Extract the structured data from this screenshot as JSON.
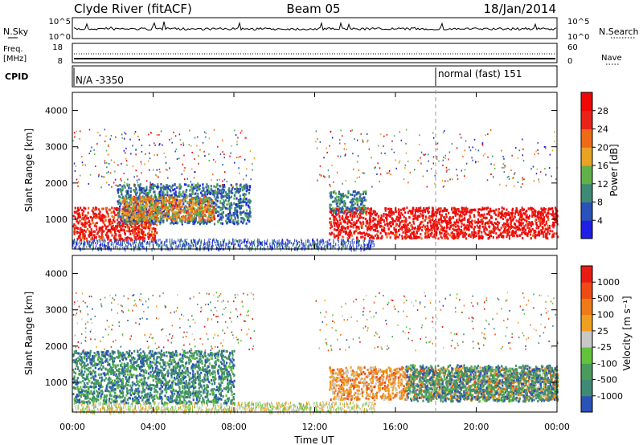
{
  "header": {
    "station": "Clyde River (fitACF)",
    "beam": "Beam 05",
    "date": "18/Jan/2014"
  },
  "top_panels": {
    "nsky_label": "N.Sky",
    "nsky_ticks": [
      "10^5",
      "10^0"
    ],
    "nsearch_label": "N.Search",
    "nsearch_ticks": [
      "10^5",
      "10^0"
    ],
    "freq_label_line1": "Freq.",
    "freq_label_line2": "[MHz]",
    "freq_ticks": [
      "18",
      "8"
    ],
    "nave_label": "Nave",
    "nave_ticks": [
      "60",
      "0"
    ],
    "cpid_label": "CPID",
    "cpid_left": "N/A -3350",
    "cpid_right": "normal (fast) 151"
  },
  "chart_data": [
    {
      "type": "heatmap",
      "name": "power",
      "ylabel": "Slant Range [km]",
      "ylim": [
        180,
        4500
      ],
      "yticks": [
        "1000",
        "2000",
        "3000",
        "4000"
      ],
      "colorbar_label": "Power [dB]",
      "colorbar_ticks": [
        "4",
        "8",
        "12",
        "16",
        "20",
        "24",
        "28"
      ],
      "colorbar_colors": [
        "#1f1fe6",
        "#2a52b8",
        "#3f8a74",
        "#62b04a",
        "#e8a224",
        "#ee6a17",
        "#e8231a",
        "#f00808"
      ],
      "regions": [
        {
          "t0": 0.0,
          "t1": 4.2,
          "r0": 450,
          "r1": 1350,
          "level": 0.85
        },
        {
          "t0": 2.2,
          "t1": 8.8,
          "r0": 900,
          "r1": 2000,
          "level": 0.25
        },
        {
          "t0": 2.4,
          "t1": 7.0,
          "r0": 1000,
          "r1": 1650,
          "level": 0.6
        },
        {
          "t0": 12.7,
          "t1": 24.0,
          "r0": 500,
          "r1": 1350,
          "level": 0.9
        },
        {
          "t0": 12.7,
          "t1": 14.5,
          "r0": 1200,
          "r1": 1800,
          "level": 0.3
        }
      ]
    },
    {
      "type": "heatmap",
      "name": "velocity",
      "xlabel": "Time UT",
      "ylabel": "Slant Range [km]",
      "ylim": [
        180,
        4500
      ],
      "yticks": [
        "1000",
        "2000",
        "3000",
        "4000"
      ],
      "xticks": [
        "00:00",
        "04:00",
        "08:00",
        "12:00",
        "16:00",
        "20:00",
        "00:00"
      ],
      "colorbar_label": "Velocity [m s⁻¹]",
      "colorbar_ticks": [
        "1000",
        "500",
        "100",
        "25",
        "-25",
        "-100",
        "-500",
        "-1000"
      ],
      "colorbar_colors": [
        "#2a52b8",
        "#3f8a74",
        "#4a9c5c",
        "#62c43a",
        "#c8c8c8",
        "#f0a020",
        "#ef7a18",
        "#ed4a15",
        "#e81c14"
      ],
      "regions": [
        {
          "t0": 0.0,
          "t1": 8.0,
          "r0": 450,
          "r1": 1900,
          "level": 0.2
        },
        {
          "t0": 12.7,
          "t1": 24.0,
          "r0": 550,
          "r1": 1450,
          "level": 0.65
        },
        {
          "t0": 16.5,
          "t1": 24.0,
          "r0": 500,
          "r1": 1500,
          "level": 0.2
        }
      ]
    }
  ]
}
